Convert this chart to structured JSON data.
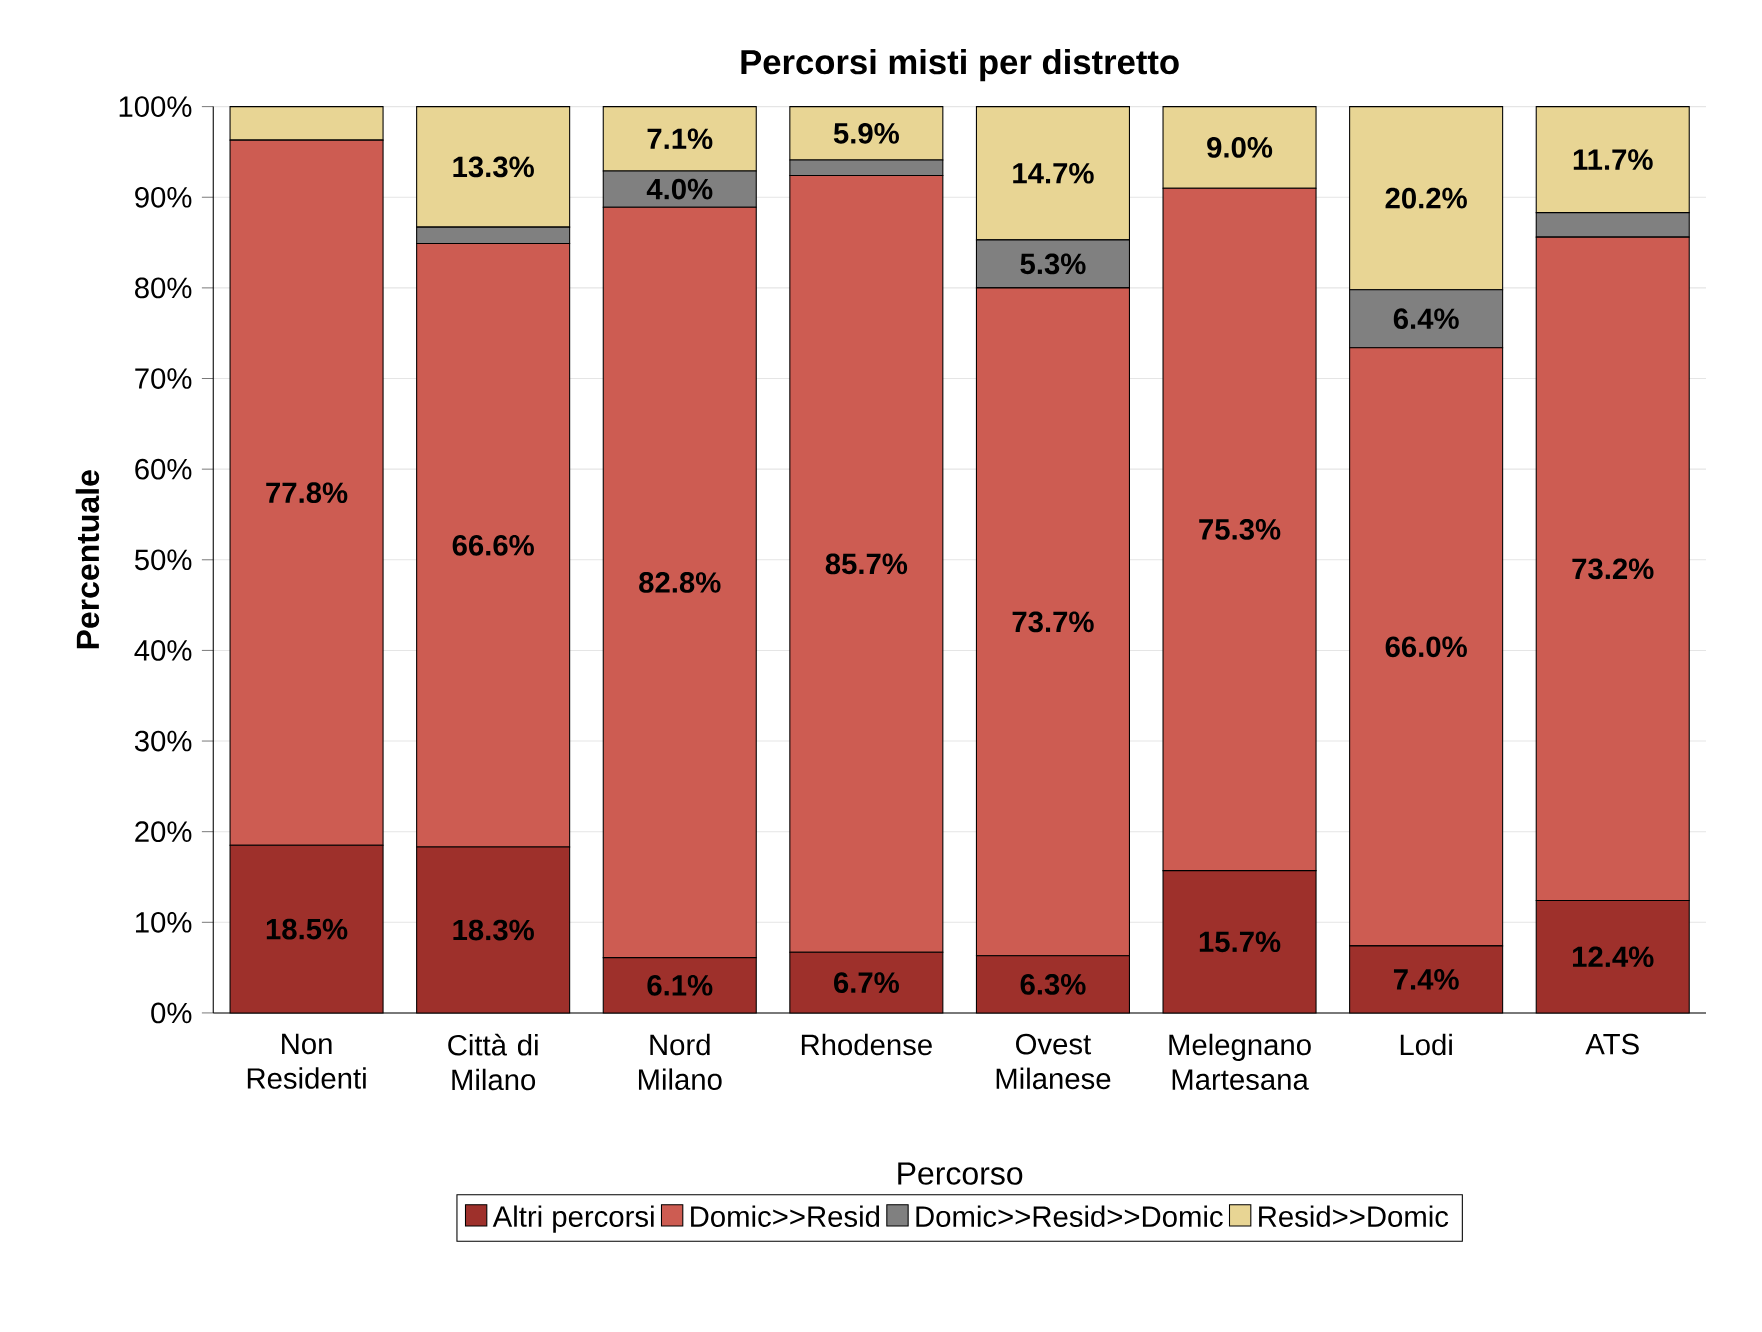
{
  "chart_data": {
    "type": "bar",
    "stacked": true,
    "title": "Percorsi misti per distretto",
    "ylabel": "Percentuale",
    "legend_title": "Percorso",
    "legend": "bottom",
    "grid": "y",
    "categories": [
      "Non Residenti",
      "Città di Milano",
      "Nord Milano",
      "Rhodense",
      "Ovest Milanese",
      "Melegnano Martesana",
      "Lodi",
      "ATS"
    ],
    "ylim": [
      0,
      100
    ],
    "yticks": [
      {
        "value": 0,
        "label": "0%"
      },
      {
        "value": 10,
        "label": "10%"
      },
      {
        "value": 20,
        "label": "20%"
      },
      {
        "value": 30,
        "label": "30%"
      },
      {
        "value": 40,
        "label": "40%"
      },
      {
        "value": 50,
        "label": "50%"
      },
      {
        "value": 60,
        "label": "60%"
      },
      {
        "value": 70,
        "label": "70%"
      },
      {
        "value": 80,
        "label": "80%"
      },
      {
        "value": 90,
        "label": "90%"
      },
      {
        "value": 100,
        "label": "100%"
      }
    ],
    "series": [
      {
        "name": "Altri percorsi",
        "color": "#9e302b",
        "values": [
          18.5,
          18.3,
          6.1,
          6.7,
          6.3,
          15.7,
          7.4,
          12.4
        ],
        "value_labels": [
          "18.5%",
          "18.3%",
          "6.1%",
          "6.7%",
          "6.3%",
          "15.7%",
          "7.4%",
          "12.4%"
        ]
      },
      {
        "name": "Domic>>Resid",
        "color": "#cd5c52",
        "values": [
          77.8,
          66.6,
          82.8,
          85.7,
          73.7,
          75.3,
          66.0,
          73.2
        ],
        "value_labels": [
          "77.8%",
          "66.6%",
          "82.8%",
          "85.7%",
          "73.7%",
          "75.3%",
          "66.0%",
          "73.2%"
        ]
      },
      {
        "name": "Domic>>Resid>>Domic",
        "color": "#808080",
        "values": [
          0,
          1.8,
          4.0,
          1.7,
          5.3,
          0,
          6.4,
          2.7
        ],
        "value_labels": [
          null,
          null,
          "4.0%",
          null,
          "5.3%",
          null,
          "6.4%",
          null
        ]
      },
      {
        "name": "Resid>>Domic",
        "color": "#e8d594",
        "values": [
          3.7,
          13.3,
          7.1,
          5.9,
          14.7,
          9.0,
          20.2,
          11.7
        ],
        "value_labels": [
          null,
          "13.3%",
          "7.1%",
          "5.9%",
          "14.7%",
          "9.0%",
          "20.2%",
          "11.7%"
        ]
      }
    ]
  }
}
